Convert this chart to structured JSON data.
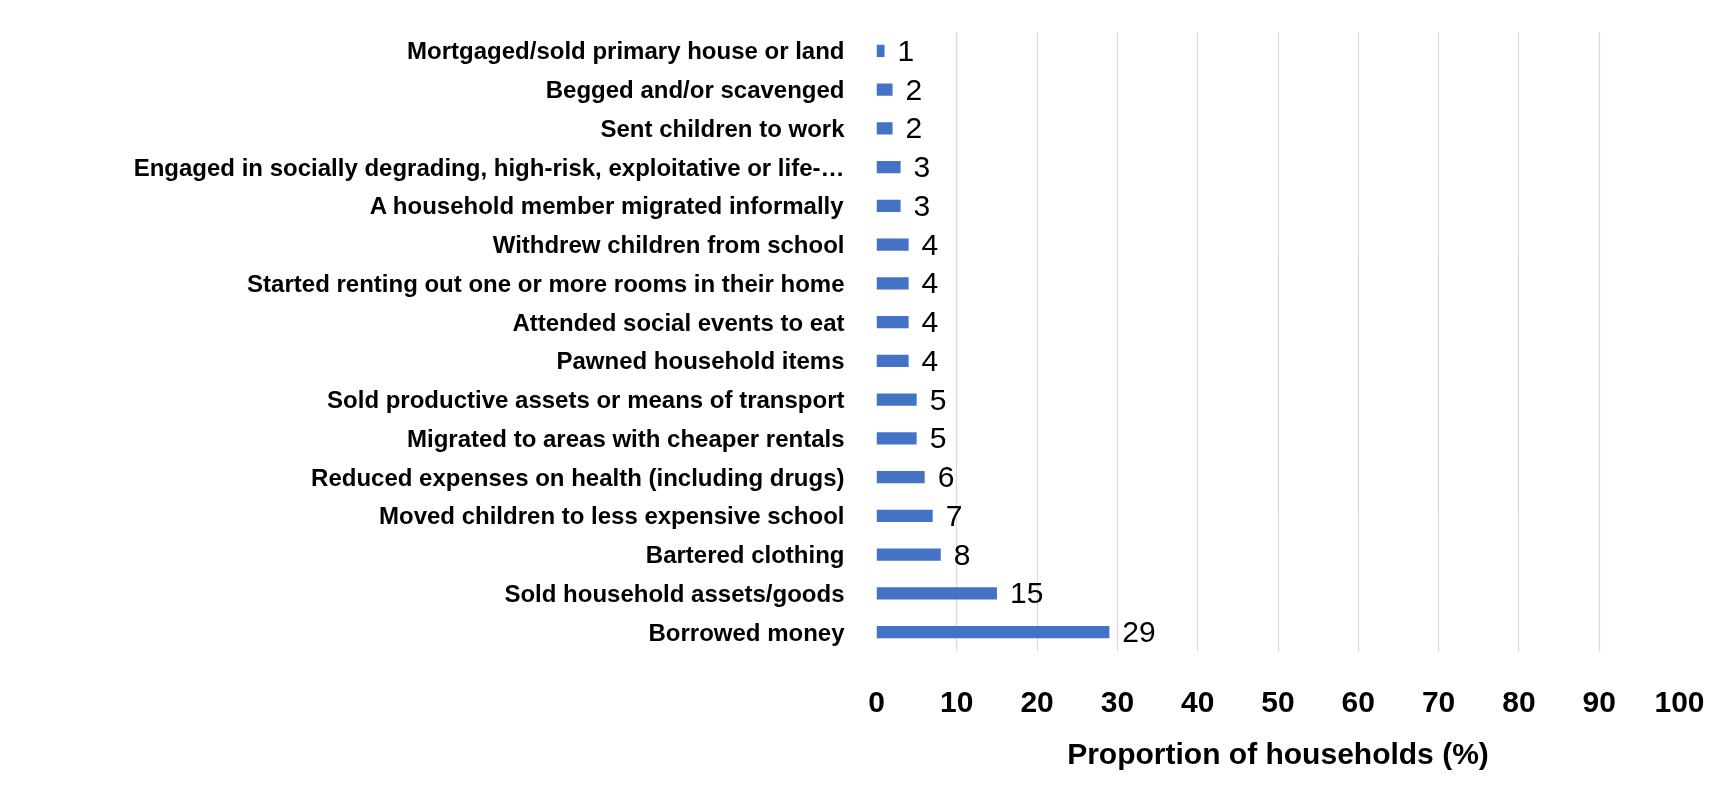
{
  "chart_data": {
    "type": "bar",
    "orientation": "horizontal",
    "categories": [
      "Mortgaged/sold primary house or land",
      "Begged and/or scavenged",
      "Sent children to work",
      "Engaged in socially degrading, high-risk, exploitative or life-…",
      "A household member migrated informally",
      "Withdrew children from school",
      "Started renting out one or more rooms in their home",
      "Attended social events to eat",
      "Pawned household items",
      "Sold productive assets or means of transport",
      "Migrated to areas with cheaper rentals",
      "Reduced expenses on health (including drugs)",
      "Moved children to less expensive school",
      "Bartered clothing",
      "Sold household assets/goods",
      "Borrowed money"
    ],
    "values": [
      1,
      2,
      2,
      3,
      3,
      4,
      4,
      4,
      4,
      5,
      5,
      6,
      7,
      8,
      15,
      29
    ],
    "color": "#4472c4",
    "data_labels": true,
    "xlim": [
      0,
      100
    ],
    "xticks": [
      0,
      10,
      20,
      30,
      40,
      50,
      60,
      70,
      80,
      90,
      100
    ],
    "xlabel": "Proportion of households (%)",
    "grid": "x"
  }
}
